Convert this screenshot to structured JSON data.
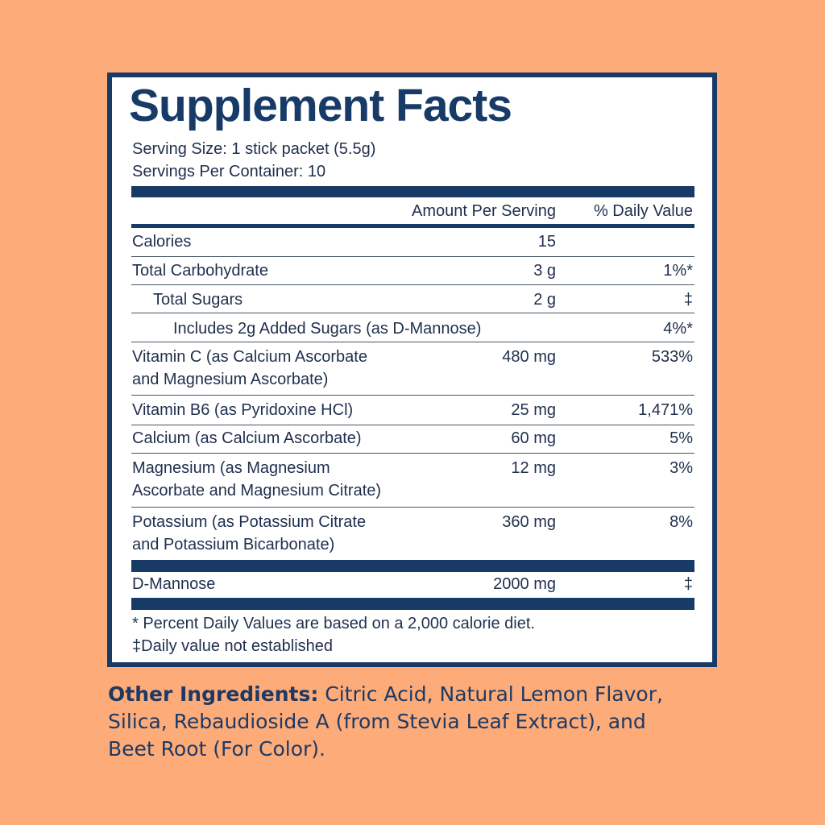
{
  "title": "Supplement Facts",
  "serving_size": "Serving Size: 1 stick packet (5.5g)",
  "servings_per_container": "Servings Per Container: 10",
  "header": {
    "amount": "Amount Per Serving",
    "daily_value": "% Daily Value"
  },
  "rows": [
    {
      "name": [
        "Calories"
      ],
      "amount": "15"
    },
    {
      "name": [
        "Total Carbohydrate"
      ],
      "amount": "3 g",
      "daily_value": "1%*"
    },
    {
      "name": [
        "Total Sugars"
      ],
      "amount": "2 g",
      "daily_value": "‡"
    },
    {
      "name": [
        "Includes 2g Added Sugars (as D-Mannose)"
      ],
      "daily_value": "4%*"
    },
    {
      "name": [
        "Vitamin C (as Calcium Ascorbate",
        "and Magnesium Ascorbate)"
      ],
      "amount": "480 mg",
      "daily_value": "533%"
    },
    {
      "name": [
        "Vitamin B6 (as Pyridoxine HCl)"
      ],
      "amount": "25 mg",
      "daily_value": "1,471%"
    },
    {
      "name": [
        "Calcium (as Calcium Ascorbate)"
      ],
      "amount": "60 mg",
      "daily_value": "5%"
    },
    {
      "name": [
        "Magnesium (as Magnesium",
        "Ascorbate and Magnesium Citrate)"
      ],
      "amount": "12 mg",
      "daily_value": "3%"
    },
    {
      "name": [
        "Potassium (as Potassium Citrate",
        "and Potassium Bicarbonate)"
      ],
      "amount": "360 mg",
      "daily_value": "8%"
    },
    {
      "name": [
        "D-Mannose"
      ],
      "amount": "2000 mg",
      "daily_value": "‡"
    }
  ],
  "footnotes": [
    "* Percent Daily Values are based on a 2,000 calorie diet.",
    "‡Daily value not established"
  ],
  "other_ingredients": {
    "label": "Other Ingredients:",
    "lines": [
      "Citric Acid, Natural Lemon Flavor,",
      "Silica, Rebaudioside A (from Stevia Leaf Extract), and",
      "Beet Root (For Color)."
    ]
  }
}
